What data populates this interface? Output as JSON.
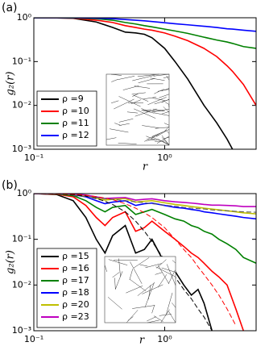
{
  "chart_data": [
    {
      "type": "line",
      "label": "(a)",
      "xlabel": "r",
      "ylabel": "g₂(r)",
      "xscale": "log",
      "yscale": "log",
      "legend": "lower left",
      "xlim": [
        0.1,
        5
      ],
      "ylim": [
        0.001,
        1
      ],
      "xticks": [
        {
          "value": 0.1,
          "label": "10⁻¹"
        },
        {
          "value": 1,
          "label": "10⁰"
        }
      ],
      "yticks": [
        {
          "value": 0.001,
          "label": "10⁻³"
        },
        {
          "value": 0.01,
          "label": "10⁻²"
        },
        {
          "value": 0.1,
          "label": "10⁻¹"
        },
        {
          "value": 1,
          "label": "10⁰"
        }
      ],
      "x": [
        0.1,
        0.15,
        0.2,
        0.3,
        0.4,
        0.5,
        0.6,
        0.7,
        0.8,
        1,
        1.2,
        1.5,
        2,
        2.5,
        3,
        3.3,
        4,
        5
      ],
      "series": [
        {
          "name": "ρ =9",
          "color": "#000000",
          "values": [
            1,
            0.99,
            0.97,
            0.8,
            0.6,
            0.47,
            0.45,
            0.42,
            0.35,
            0.2,
            0.1,
            0.04,
            0.01,
            0.004,
            0.0017,
            0.001,
            null,
            null
          ]
        },
        {
          "name": "ρ =10",
          "color": "#ff0000",
          "values": [
            1,
            0.99,
            0.98,
            0.88,
            0.78,
            0.66,
            0.6,
            0.55,
            0.52,
            0.45,
            0.38,
            0.3,
            0.2,
            0.13,
            0.08,
            0.06,
            0.03,
            0.01
          ]
        },
        {
          "name": "ρ =11",
          "color": "#008000",
          "values": [
            1,
            1,
            0.99,
            0.95,
            0.88,
            0.78,
            0.72,
            0.66,
            0.62,
            0.55,
            0.5,
            0.44,
            0.36,
            0.31,
            0.28,
            0.26,
            0.22,
            0.2
          ]
        },
        {
          "name": "ρ =12",
          "color": "#0000ff",
          "values": [
            1,
            1,
            1,
            0.98,
            0.95,
            0.91,
            0.88,
            0.85,
            0.82,
            0.77,
            0.73,
            0.69,
            0.64,
            0.6,
            0.56,
            0.55,
            0.52,
            0.49
          ]
        }
      ]
    },
    {
      "type": "line",
      "label": "(b)",
      "xlabel": "r",
      "ylabel": "g₂(r)",
      "xscale": "log",
      "yscale": "log",
      "legend": "lower left",
      "xlim": [
        0.1,
        5
      ],
      "ylim": [
        0.001,
        1
      ],
      "xticks": [
        {
          "value": 0.1,
          "label": "10⁻¹"
        },
        {
          "value": 1,
          "label": "10⁰"
        }
      ],
      "yticks": [
        {
          "value": 0.001,
          "label": "10⁻³"
        },
        {
          "value": 0.01,
          "label": "10⁻²"
        },
        {
          "value": 0.1,
          "label": "10⁻¹"
        },
        {
          "value": 1,
          "label": "10⁰"
        }
      ],
      "x": [
        0.1,
        0.15,
        0.2,
        0.25,
        0.3,
        0.35,
        0.4,
        0.5,
        0.6,
        0.7,
        0.8,
        1,
        1.2,
        1.4,
        1.6,
        1.8,
        2,
        2.3,
        2.6,
        3,
        3.5,
        4,
        5
      ],
      "series": [
        {
          "name": "ρ =15",
          "color": "#000000",
          "values": [
            1,
            0.95,
            0.7,
            0.3,
            0.1,
            0.05,
            0.12,
            0.2,
            0.05,
            0.06,
            0.1,
            0.03,
            0.02,
            0.01,
            0.006,
            0.008,
            0.004,
            0.001,
            null,
            null,
            null,
            null,
            null
          ]
        },
        {
          "name": "ρ =16",
          "color": "#ff0000",
          "values": [
            1,
            0.97,
            0.85,
            0.55,
            0.3,
            0.2,
            0.3,
            0.4,
            0.15,
            0.18,
            0.25,
            0.15,
            0.1,
            0.07,
            0.05,
            0.04,
            0.03,
            0.02,
            0.015,
            0.01,
            0.003,
            0.001,
            null
          ]
        },
        {
          "name": "ρ =17",
          "color": "#008000",
          "values": [
            1,
            0.98,
            0.9,
            0.7,
            0.5,
            0.4,
            0.5,
            0.55,
            0.35,
            0.4,
            0.45,
            0.35,
            0.28,
            0.25,
            0.2,
            0.18,
            0.15,
            0.13,
            0.1,
            0.08,
            0.06,
            0.04,
            0.03
          ]
        },
        {
          "name": "ρ =18",
          "color": "#0000ff",
          "values": [
            1,
            0.99,
            0.95,
            0.85,
            0.7,
            0.6,
            0.65,
            0.7,
            0.55,
            0.6,
            0.62,
            0.55,
            0.5,
            0.48,
            0.45,
            0.43,
            0.4,
            0.38,
            0.36,
            0.34,
            0.32,
            0.3,
            0.28
          ]
        },
        {
          "name": "ρ =20",
          "color": "#bfbf00",
          "values": [
            1,
            0.99,
            0.96,
            0.9,
            0.8,
            0.72,
            0.75,
            0.78,
            0.65,
            0.68,
            0.7,
            0.63,
            0.58,
            0.55,
            0.52,
            0.5,
            0.48,
            0.46,
            0.44,
            0.42,
            0.4,
            0.38,
            0.36
          ]
        },
        {
          "name": "ρ =23",
          "color": "#bf00bf",
          "values": [
            1,
            1,
            0.98,
            0.93,
            0.85,
            0.78,
            0.8,
            0.82,
            0.72,
            0.75,
            0.77,
            0.7,
            0.66,
            0.64,
            0.62,
            0.6,
            0.58,
            0.56,
            0.56,
            0.55,
            0.54,
            0.52,
            0.52
          ]
        },
        {
          "color": "#000000",
          "dash": true,
          "values": [
            1,
            0.99,
            0.95,
            0.88,
            0.78,
            0.68,
            0.58,
            0.4,
            0.25,
            0.15,
            0.09,
            0.035,
            0.015,
            0.008,
            0.005,
            0.003,
            0.002,
            0.001,
            null,
            null,
            null,
            null,
            null
          ]
        },
        {
          "color": "#ff0000",
          "dash": true,
          "values": [
            1,
            0.99,
            0.97,
            0.92,
            0.86,
            0.8,
            0.74,
            0.6,
            0.48,
            0.38,
            0.3,
            0.18,
            0.1,
            0.06,
            0.04,
            0.025,
            0.017,
            0.01,
            0.006,
            0.003,
            0.0013,
            null,
            null
          ]
        },
        {
          "color": "#555555",
          "dash": true,
          "values": [
            null,
            null,
            0.9,
            0.86,
            0.82,
            0.78,
            0.75,
            0.7,
            0.66,
            0.63,
            0.6,
            0.56,
            0.53,
            0.5,
            0.48,
            0.47,
            0.46,
            0.44,
            0.43,
            0.42,
            0.41,
            0.4,
            0.39
          ]
        }
      ]
    }
  ]
}
